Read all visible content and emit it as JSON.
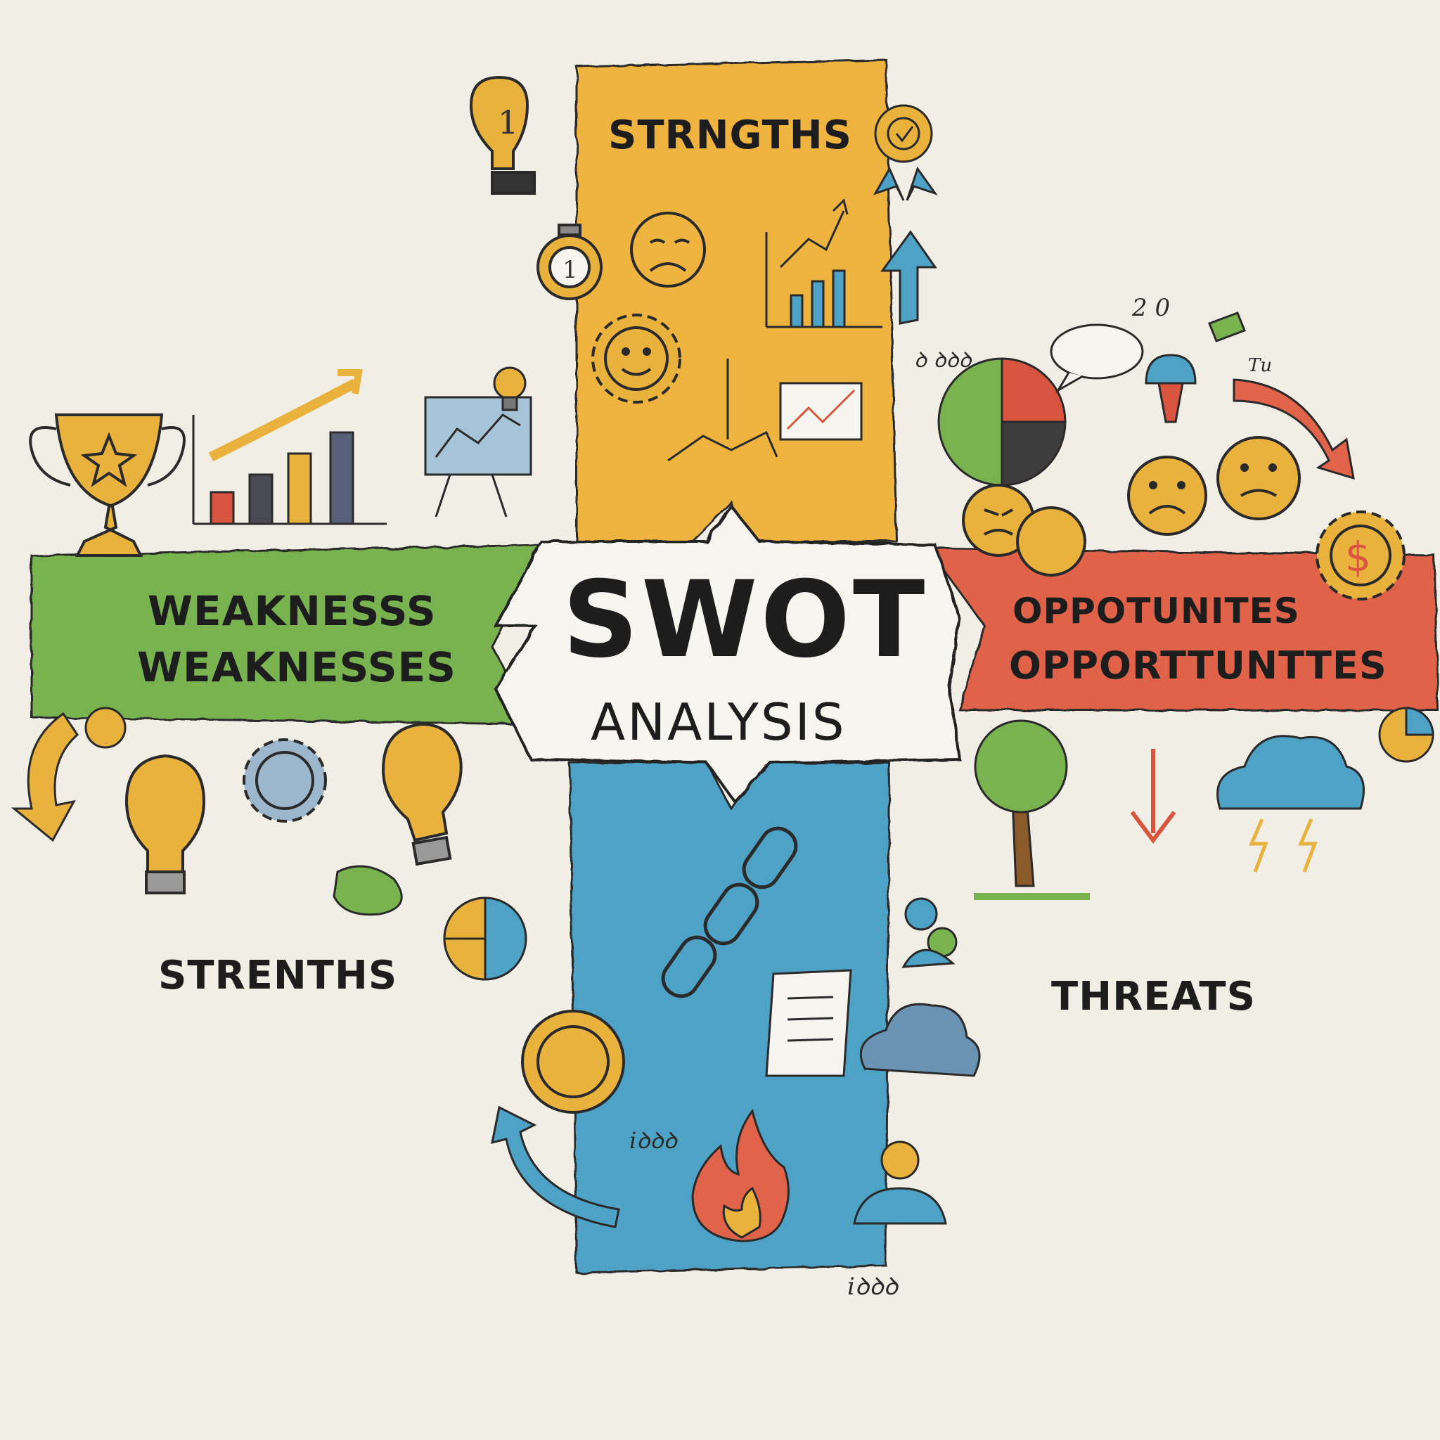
{
  "diagram": {
    "center": {
      "title": "SWOT",
      "subtitle": "ANALYSIS"
    },
    "labels": {
      "top": "STRNGTHS",
      "left_line1": "WEAKNESSS",
      "left_line2": "WEAKNESSES",
      "right_line1": "OPPOTUNITES",
      "right_line2": "OPPORTTUNTTES",
      "bottom_left": "STRENTHS",
      "bottom_right": "THREATS"
    },
    "scribbles": {
      "s1": "2 0",
      "s2": "ꝺ ꝺꝺꝺ",
      "s3": "Tu",
      "s4": "iꝺꝺꝺ",
      "s5": "iꝺꝺꝺ"
    },
    "colors": {
      "top_band": "#efb43f",
      "left_band": "#79b34f",
      "right_band": "#e0634a",
      "bottom_band": "#4da2c6",
      "paper": "#f1eee6"
    }
  }
}
